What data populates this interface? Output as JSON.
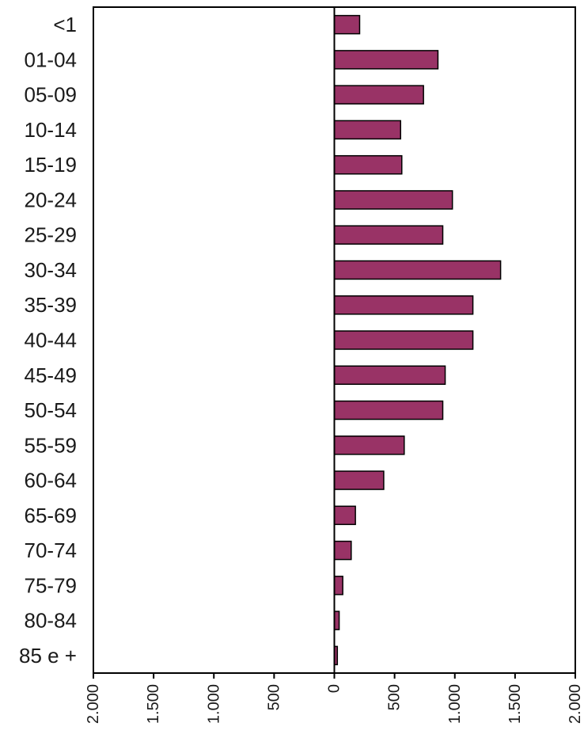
{
  "chart_data": {
    "type": "bar",
    "orientation": "horizontal",
    "categories": [
      "<1",
      "01-04",
      "05-09",
      "10-14",
      "15-19",
      "20-24",
      "25-29",
      "30-34",
      "35-39",
      "40-44",
      "45-49",
      "50-54",
      "55-59",
      "60-64",
      "65-69",
      "70-74",
      "75-79",
      "80-84",
      "85 e +"
    ],
    "values": [
      210,
      860,
      740,
      550,
      560,
      980,
      900,
      1380,
      1150,
      1150,
      920,
      900,
      580,
      410,
      175,
      140,
      70,
      40,
      25
    ],
    "xlim": [
      -2000,
      2000
    ],
    "xticks": [
      -2000,
      -1500,
      -1000,
      -500,
      0,
      500,
      1000,
      1500,
      2000
    ],
    "xtick_labels": [
      "2.000",
      "1.500",
      "1.000",
      "500",
      "0",
      "500",
      "1.000",
      "1.500",
      "2.000"
    ],
    "bar_color": "#993366",
    "grid": false,
    "title": "",
    "xlabel": "",
    "ylabel": ""
  }
}
